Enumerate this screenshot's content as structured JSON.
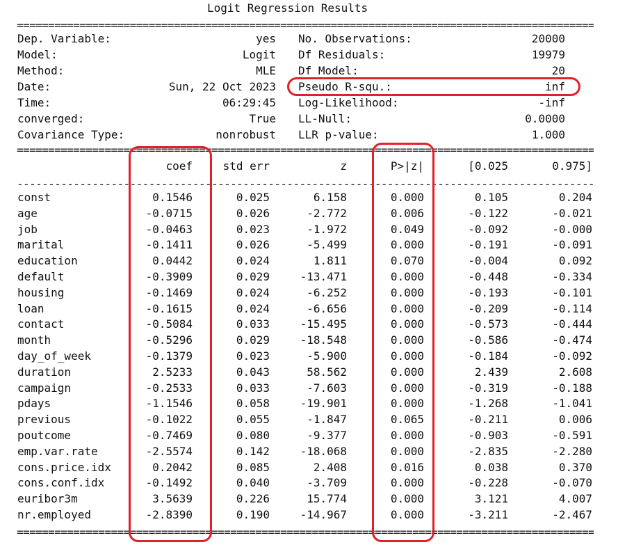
{
  "title": "Logit Regression Results",
  "rule_double": "================================================================================================",
  "rule_single": "------------------------------------------------------------------------------------------------",
  "summary_left": [
    {
      "label": "Dep. Variable:",
      "value": "yes"
    },
    {
      "label": "Model:",
      "value": "Logit"
    },
    {
      "label": "Method:",
      "value": "MLE"
    },
    {
      "label": "Date:",
      "value": "Sun, 22 Oct 2023"
    },
    {
      "label": "Time:",
      "value": "06:29:45"
    },
    {
      "label": "converged:",
      "value": "True"
    },
    {
      "label": "Covariance Type:",
      "value": "nonrobust"
    }
  ],
  "summary_right": [
    {
      "label": "No. Observations:",
      "value": "20000"
    },
    {
      "label": "Df Residuals:",
      "value": "19979"
    },
    {
      "label": "Df Model:",
      "value": "20"
    },
    {
      "label": "Pseudo R-squ.:",
      "value": "inf"
    },
    {
      "label": "Log-Likelihood:",
      "value": "-inf"
    },
    {
      "label": "LL-Null:",
      "value": "0.0000"
    },
    {
      "label": "LLR p-value:",
      "value": "1.000"
    }
  ],
  "columns": [
    "coef",
    "std err",
    "z",
    "P>|z|",
    "[0.025",
    "0.975]"
  ],
  "rows": [
    [
      "const",
      "0.1546",
      "0.025",
      "6.158",
      "0.000",
      "0.105",
      "0.204"
    ],
    [
      "age",
      "-0.0715",
      "0.026",
      "-2.772",
      "0.006",
      "-0.122",
      "-0.021"
    ],
    [
      "job",
      "-0.0463",
      "0.023",
      "-1.972",
      "0.049",
      "-0.092",
      "-0.000"
    ],
    [
      "marital",
      "-0.1411",
      "0.026",
      "-5.499",
      "0.000",
      "-0.191",
      "-0.091"
    ],
    [
      "education",
      "0.0442",
      "0.024",
      "1.811",
      "0.070",
      "-0.004",
      "0.092"
    ],
    [
      "default",
      "-0.3909",
      "0.029",
      "-13.471",
      "0.000",
      "-0.448",
      "-0.334"
    ],
    [
      "housing",
      "-0.1469",
      "0.024",
      "-6.252",
      "0.000",
      "-0.193",
      "-0.101"
    ],
    [
      "loan",
      "-0.1615",
      "0.024",
      "-6.656",
      "0.000",
      "-0.209",
      "-0.114"
    ],
    [
      "contact",
      "-0.5084",
      "0.033",
      "-15.495",
      "0.000",
      "-0.573",
      "-0.444"
    ],
    [
      "month",
      "-0.5296",
      "0.029",
      "-18.548",
      "0.000",
      "-0.586",
      "-0.474"
    ],
    [
      "day_of_week",
      "-0.1379",
      "0.023",
      "-5.900",
      "0.000",
      "-0.184",
      "-0.092"
    ],
    [
      "duration",
      "2.5233",
      "0.043",
      "58.562",
      "0.000",
      "2.439",
      "2.608"
    ],
    [
      "campaign",
      "-0.2533",
      "0.033",
      "-7.603",
      "0.000",
      "-0.319",
      "-0.188"
    ],
    [
      "pdays",
      "-1.1546",
      "0.058",
      "-19.901",
      "0.000",
      "-1.268",
      "-1.041"
    ],
    [
      "previous",
      "-0.1022",
      "0.055",
      "-1.847",
      "0.065",
      "-0.211",
      "0.006"
    ],
    [
      "poutcome",
      "-0.7469",
      "0.080",
      "-9.377",
      "0.000",
      "-0.903",
      "-0.591"
    ],
    [
      "emp.var.rate",
      "-2.5574",
      "0.142",
      "-18.068",
      "0.000",
      "-2.835",
      "-2.280"
    ],
    [
      "cons.price.idx",
      "0.2042",
      "0.085",
      "2.408",
      "0.016",
      "0.038",
      "0.370"
    ],
    [
      "cons.conf.idx",
      "-0.1492",
      "0.040",
      "-3.709",
      "0.000",
      "-0.228",
      "-0.070"
    ],
    [
      "euribor3m",
      "3.5639",
      "0.226",
      "15.774",
      "0.000",
      "3.121",
      "4.007"
    ],
    [
      "nr.employed",
      "-2.8390",
      "0.190",
      "-14.967",
      "0.000",
      "-3.211",
      "-2.467"
    ]
  ],
  "highlight_color": "#e0202a"
}
